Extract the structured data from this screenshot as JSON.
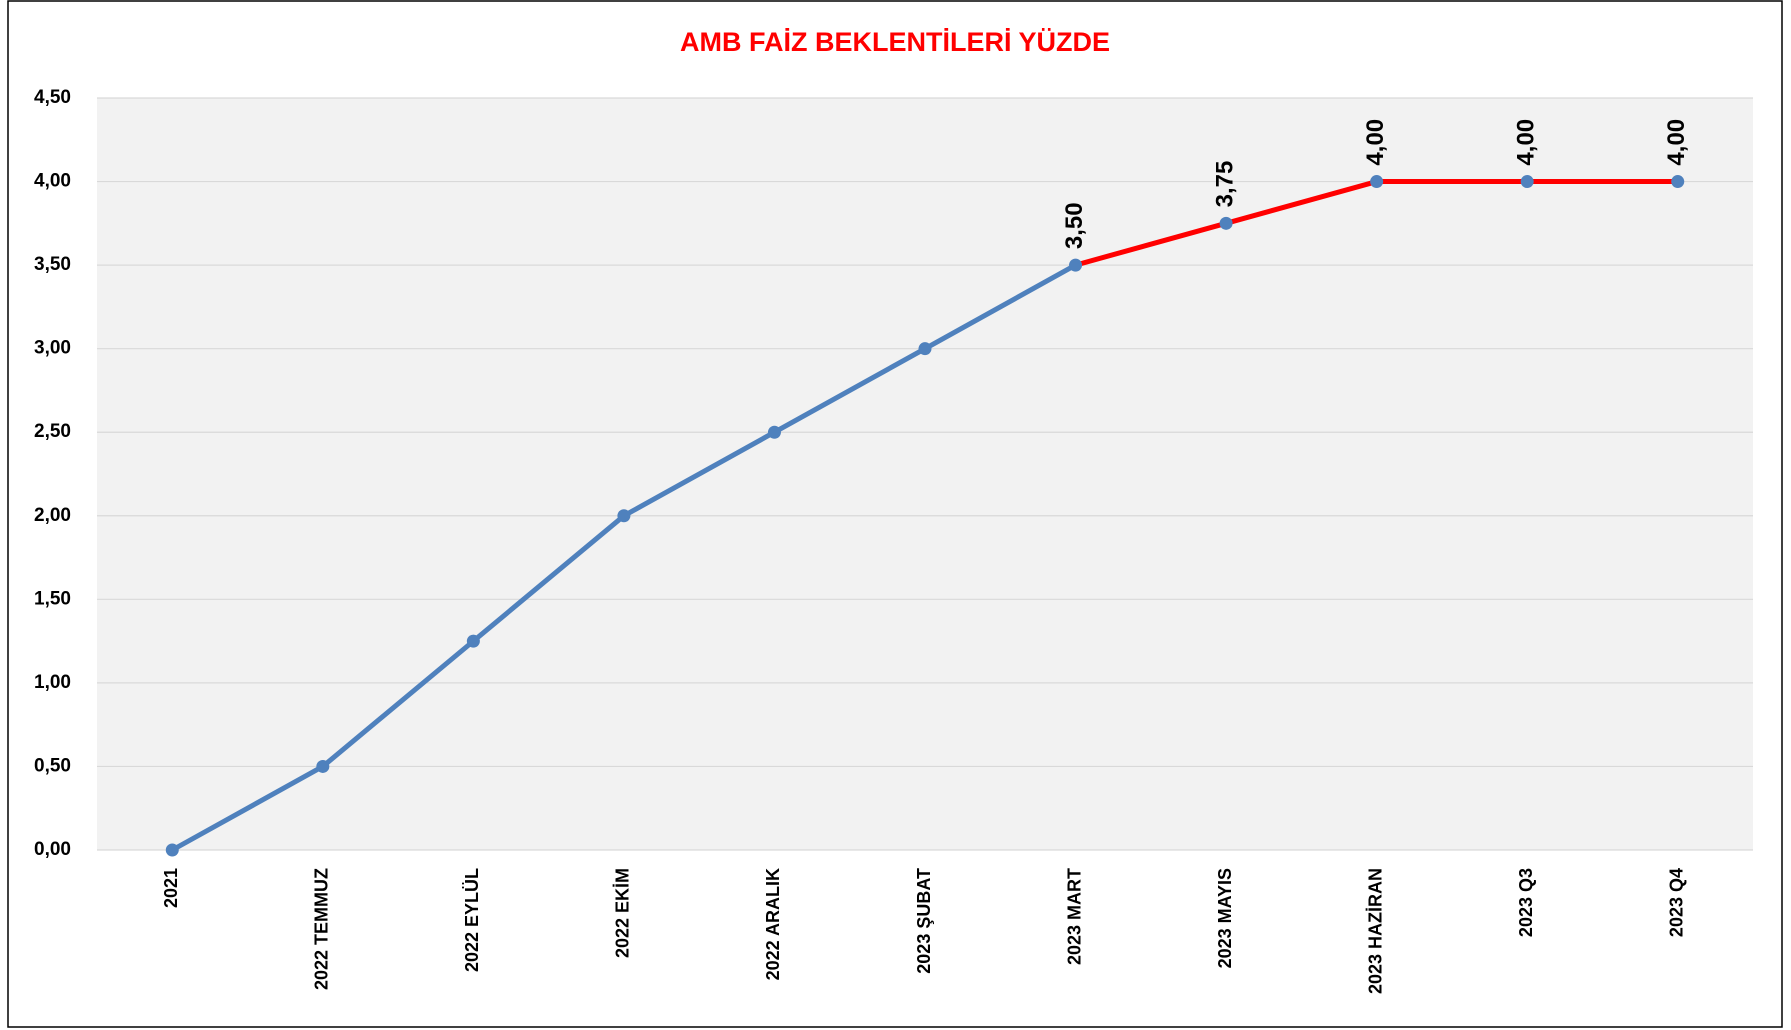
{
  "chart_data": {
    "type": "line",
    "title": "AMB FAİZ BEKLENTİLERİ YÜZDE",
    "categories": [
      "2021",
      "2022 TEMMUZ",
      "2022 EYLÜL",
      "2022 EKİM",
      "2022 ARALIK",
      "2023 ŞUBAT",
      "2023 MART",
      "2023 MAYIS",
      "2023 HAZİRAN",
      "2023 Q3",
      "2023 Q4"
    ],
    "series": [
      {
        "color": "#4f81bd",
        "highlight_color": "#ff0000",
        "highlight_from": 6,
        "values": [
          0,
          0.5,
          1.25,
          2,
          2.5,
          3,
          3.5,
          3.75,
          4,
          4,
          4
        ],
        "value_labels": [
          null,
          null,
          null,
          null,
          null,
          null,
          "3,50",
          "3,75",
          "4,00",
          "4,00",
          "4,00"
        ]
      }
    ],
    "ylim": [
      0,
      4.5
    ],
    "yticks": [
      {
        "value": 0,
        "label": "0,00"
      },
      {
        "value": 0.5,
        "label": "0,50"
      },
      {
        "value": 1,
        "label": "1,00"
      },
      {
        "value": 1.5,
        "label": "1,50"
      },
      {
        "value": 2,
        "label": "2,00"
      },
      {
        "value": 2.5,
        "label": "2,50"
      },
      {
        "value": 3,
        "label": "3,00"
      },
      {
        "value": 3.5,
        "label": "3,50"
      },
      {
        "value": 4,
        "label": "4,00"
      },
      {
        "value": 4.5,
        "label": "4,50"
      }
    ],
    "grid": true
  }
}
